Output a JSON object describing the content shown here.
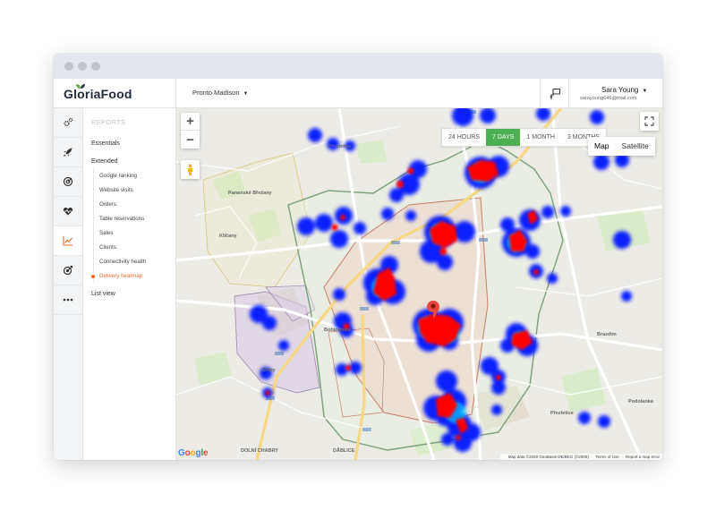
{
  "brand": {
    "name": "GloriaFood"
  },
  "topbar": {
    "restaurant": "Pronto Madison",
    "user_name": "Sara Young",
    "user_email": "sarayoung646@mail.com"
  },
  "iconbar": {
    "items": [
      "settings-icon",
      "rocket-icon",
      "target-icon",
      "heart-pulse-icon",
      "chart-icon",
      "goal-icon",
      "more-icon"
    ],
    "active": "chart-icon"
  },
  "menu": {
    "title": "REPORTS",
    "essentials": "Essentials",
    "extended": "Extended",
    "items": [
      "Google ranking",
      "Website visits",
      "Orders",
      "Table reservations",
      "Sales",
      "Clients",
      "Connectivity health",
      "Delivery heatmap"
    ],
    "active_item": "Delivery heatmap",
    "list_view": "List view"
  },
  "map": {
    "zoom_in": "+",
    "zoom_out": "−",
    "ranges": [
      "24 HOURS",
      "7 DAYS",
      "1 MONTH",
      "3 MONTHS"
    ],
    "selected_range": "7 DAYS",
    "map_type": [
      "Map",
      "Satellite"
    ],
    "selected_map_type": "Map",
    "attribution": "Map data ©2020 GeoBasis-DE/BKG (©2009)",
    "terms": "Terms of Use",
    "report": "Report a map error",
    "places": [
      "Přezletice",
      "Klíčany",
      "Brazdim",
      "Podolanka",
      "DOLNÍ CHABRY",
      "DĂBLICE",
      "Zdiby",
      "Bořanovice",
      "Čakovice",
      "Libeznice",
      "Pakoměřice",
      "Postřižín",
      "Panenské Břežany"
    ],
    "accent_color": "#4caf50",
    "heat_hot": "#ff0000",
    "heat_cold": "#0000ff"
  }
}
